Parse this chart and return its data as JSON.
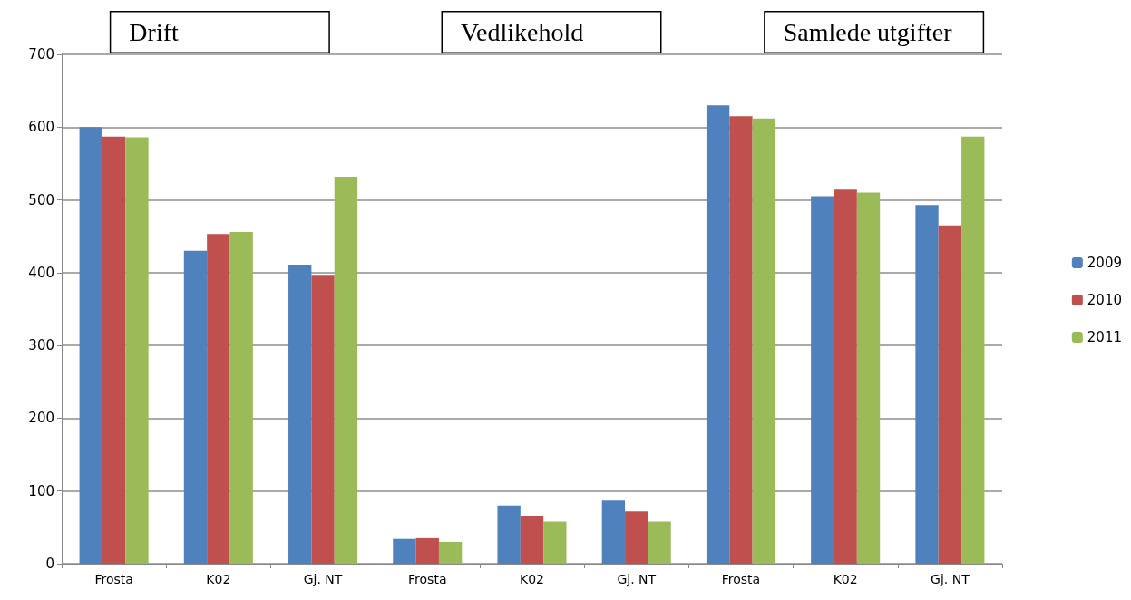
{
  "chart_data": {
    "type": "bar",
    "annotations": [
      "Drift",
      "Vedlikehold",
      "Samlede utgifter"
    ],
    "categories": [
      "Frosta",
      "K02",
      "Gj. NT",
      "Frosta",
      "K02",
      "Gj. NT",
      "Frosta",
      "K02",
      "Gj. NT"
    ],
    "series": [
      {
        "name": "2009",
        "color": "#4f81bd",
        "values": [
          600,
          430,
          411,
          34,
          80,
          87,
          630,
          505,
          493
        ]
      },
      {
        "name": "2010",
        "color": "#c0504d",
        "values": [
          587,
          453,
          397,
          35,
          66,
          72,
          615,
          514,
          465
        ]
      },
      {
        "name": "2011",
        "color": "#9bbb59",
        "values": [
          586,
          456,
          532,
          30,
          58,
          58,
          612,
          510,
          587
        ]
      }
    ],
    "ylim": [
      0,
      700
    ],
    "yticks": [
      0,
      100,
      200,
      300,
      400,
      500,
      600,
      700
    ],
    "grid": true,
    "legend": "right"
  }
}
